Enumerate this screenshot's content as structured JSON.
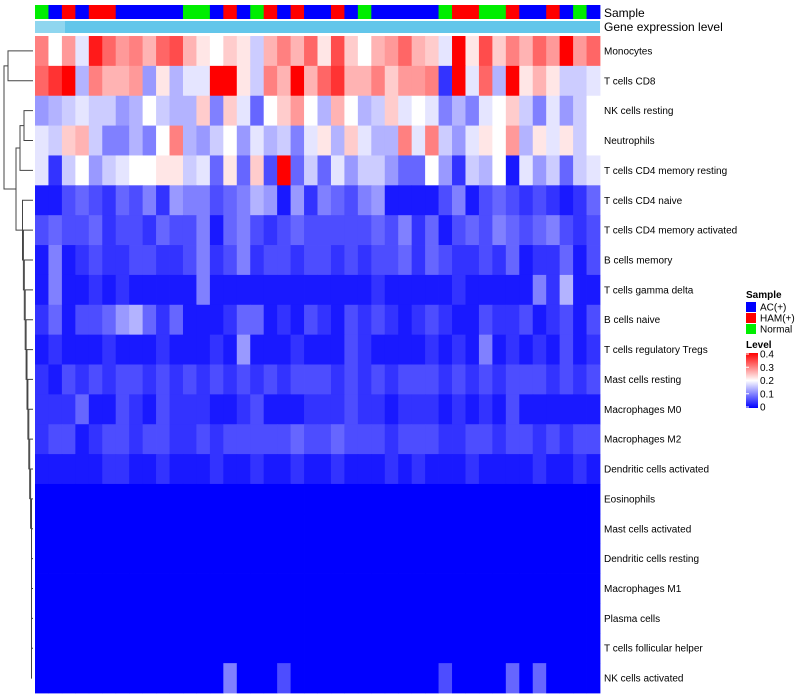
{
  "chart_data": {
    "type": "heatmap",
    "annotation_labels": {
      "sample": "Sample",
      "gene": "Gene expression level"
    },
    "legend": {
      "sample_title": "Sample",
      "sample_entries": [
        {
          "name": "AC(+)",
          "color": "#0000ff"
        },
        {
          "name": "HAM(+)",
          "color": "#ff0000"
        },
        {
          "name": "Normal",
          "color": "#00ee00"
        }
      ],
      "level_title": "Level",
      "level_ticks": [
        "0.4",
        "0.3",
        "0.2",
        "0.1",
        "0"
      ],
      "level_range": [
        0,
        0.4
      ]
    },
    "sample_groups": [
      "N",
      "A",
      "H",
      "A",
      "H",
      "H",
      "A",
      "A",
      "A",
      "A",
      "A",
      "N",
      "N",
      "A",
      "H",
      "A",
      "N",
      "H",
      "A",
      "H",
      "A",
      "A",
      "H",
      "A",
      "N",
      "A",
      "A",
      "A",
      "A",
      "A",
      "N",
      "H",
      "H",
      "N",
      "N",
      "H",
      "A",
      "A",
      "H",
      "A",
      "N",
      "A"
    ],
    "gene_expression_color": "#63c6ea",
    "rows": [
      "Monocytes",
      "T cells CD8",
      "NK cells resting",
      "Neutrophils",
      "T cells CD4 memory resting",
      "T cells CD4 naive",
      "T cells CD4 memory activated",
      "B cells memory",
      "T cells gamma delta",
      "B cells naive",
      "T cells regulatory  Tregs",
      "Mast cells resting",
      "Macrophages M0",
      "Macrophages M2",
      "Dendritic cells activated",
      "Eosinophils",
      "Mast cells activated",
      "Dendritic cells resting",
      "Macrophages M1",
      "Plasma cells",
      "T cells follicular helper",
      "NK cells activated"
    ],
    "values": [
      [
        0.3,
        0.2,
        0.28,
        0.18,
        0.38,
        0.32,
        0.28,
        0.3,
        0.26,
        0.32,
        0.34,
        0.26,
        0.22,
        0.2,
        0.24,
        0.22,
        0.16,
        0.26,
        0.3,
        0.26,
        0.32,
        0.22,
        0.34,
        0.24,
        0.2,
        0.26,
        0.28,
        0.32,
        0.26,
        0.24,
        0.18,
        0.4,
        0.22,
        0.34,
        0.24,
        0.3,
        0.26,
        0.32,
        0.28,
        0.4,
        0.28,
        0.32
      ],
      [
        0.32,
        0.36,
        0.4,
        0.14,
        0.3,
        0.26,
        0.26,
        0.28,
        0.12,
        0.22,
        0.14,
        0.18,
        0.18,
        0.4,
        0.4,
        0.22,
        0.16,
        0.3,
        0.26,
        0.4,
        0.26,
        0.32,
        0.36,
        0.26,
        0.26,
        0.3,
        0.24,
        0.28,
        0.28,
        0.3,
        0.04,
        0.4,
        0.18,
        0.32,
        0.14,
        0.4,
        0.22,
        0.26,
        0.22,
        0.16,
        0.16,
        0.18
      ],
      [
        0.12,
        0.14,
        0.16,
        0.18,
        0.16,
        0.16,
        0.12,
        0.14,
        0.2,
        0.16,
        0.14,
        0.14,
        0.24,
        0.1,
        0.24,
        0.18,
        0.08,
        0.2,
        0.24,
        0.28,
        0.2,
        0.14,
        0.26,
        0.2,
        0.14,
        0.16,
        0.24,
        0.18,
        0.2,
        0.18,
        0.1,
        0.14,
        0.1,
        0.18,
        0.2,
        0.24,
        0.16,
        0.1,
        0.18,
        0.12,
        0.16,
        0.2
      ],
      [
        0.18,
        0.16,
        0.24,
        0.26,
        0.16,
        0.1,
        0.1,
        0.14,
        0.1,
        0.2,
        0.3,
        0.14,
        0.12,
        0.16,
        0.2,
        0.12,
        0.18,
        0.14,
        0.16,
        0.1,
        0.18,
        0.22,
        0.14,
        0.24,
        0.18,
        0.14,
        0.14,
        0.3,
        0.18,
        0.3,
        0.16,
        0.12,
        0.18,
        0.22,
        0.2,
        0.28,
        0.14,
        0.22,
        0.18,
        0.22,
        0.16,
        0.2
      ],
      [
        0.18,
        0.04,
        0.16,
        0.2,
        0.12,
        0.16,
        0.18,
        0.2,
        0.2,
        0.22,
        0.22,
        0.16,
        0.18,
        0.08,
        0.22,
        0.08,
        0.24,
        0.06,
        0.4,
        0.08,
        0.16,
        0.08,
        0.18,
        0.12,
        0.16,
        0.16,
        0.12,
        0.08,
        0.08,
        0.2,
        0.12,
        0.04,
        0.16,
        0.14,
        0.2,
        0.02,
        0.18,
        0.12,
        0.16,
        0.08,
        0.16,
        0.18
      ],
      [
        0.02,
        0.02,
        0.06,
        0.08,
        0.06,
        0.04,
        0.08,
        0.06,
        0.1,
        0.04,
        0.12,
        0.1,
        0.1,
        0.06,
        0.08,
        0.1,
        0.14,
        0.12,
        0.02,
        0.12,
        0.04,
        0.1,
        0.08,
        0.06,
        0.1,
        0.12,
        0.02,
        0.02,
        0.02,
        0.02,
        0.06,
        0.1,
        0.02,
        0.06,
        0.08,
        0.06,
        0.04,
        0.06,
        0.04,
        0.02,
        0.04,
        0.08
      ],
      [
        0.06,
        0.08,
        0.06,
        0.06,
        0.08,
        0.04,
        0.06,
        0.06,
        0.04,
        0.08,
        0.06,
        0.06,
        0.1,
        0.02,
        0.08,
        0.1,
        0.06,
        0.04,
        0.06,
        0.08,
        0.06,
        0.06,
        0.06,
        0.06,
        0.06,
        0.08,
        0.06,
        0.1,
        0.04,
        0.08,
        0.02,
        0.06,
        0.08,
        0.06,
        0.1,
        0.08,
        0.06,
        0.08,
        0.1,
        0.06,
        0.04,
        0.06
      ],
      [
        0.02,
        0.1,
        0.02,
        0.04,
        0.06,
        0.04,
        0.04,
        0.06,
        0.06,
        0.04,
        0.04,
        0.06,
        0.1,
        0.04,
        0.06,
        0.1,
        0.04,
        0.06,
        0.06,
        0.04,
        0.06,
        0.06,
        0.04,
        0.06,
        0.04,
        0.06,
        0.06,
        0.08,
        0.04,
        0.08,
        0.06,
        0.04,
        0.04,
        0.06,
        0.04,
        0.08,
        0.02,
        0.04,
        0.04,
        0.08,
        0.02,
        0.06
      ],
      [
        0.02,
        0.1,
        0.02,
        0.02,
        0.04,
        0.02,
        0.04,
        0.02,
        0.02,
        0.02,
        0.02,
        0.02,
        0.1,
        0.02,
        0.02,
        0.02,
        0.02,
        0.02,
        0.02,
        0.02,
        0.02,
        0.02,
        0.02,
        0.02,
        0.02,
        0.04,
        0.02,
        0.02,
        0.02,
        0.02,
        0.02,
        0.04,
        0.02,
        0.02,
        0.02,
        0.02,
        0.02,
        0.1,
        0.04,
        0.14,
        0.02,
        0.02
      ],
      [
        0.04,
        0.08,
        0.02,
        0.06,
        0.06,
        0.08,
        0.12,
        0.14,
        0.08,
        0.04,
        0.08,
        0.02,
        0.02,
        0.02,
        0.04,
        0.08,
        0.08,
        0.02,
        0.04,
        0.02,
        0.06,
        0.04,
        0.02,
        0.06,
        0.04,
        0.06,
        0.04,
        0.02,
        0.04,
        0.06,
        0.04,
        0.02,
        0.02,
        0.06,
        0.04,
        0.04,
        0.06,
        0.02,
        0.04,
        0.06,
        0.02,
        0.06
      ],
      [
        0.02,
        0.04,
        0.02,
        0.02,
        0.02,
        0.04,
        0.02,
        0.02,
        0.02,
        0.04,
        0.02,
        0.02,
        0.02,
        0.04,
        0.02,
        0.12,
        0.02,
        0.02,
        0.02,
        0.04,
        0.02,
        0.02,
        0.02,
        0.06,
        0.04,
        0.02,
        0.02,
        0.02,
        0.02,
        0.04,
        0.02,
        0.04,
        0.02,
        0.1,
        0.02,
        0.04,
        0.02,
        0.04,
        0.02,
        0.06,
        0.02,
        0.04
      ],
      [
        0.04,
        0.02,
        0.06,
        0.04,
        0.06,
        0.04,
        0.06,
        0.06,
        0.04,
        0.06,
        0.04,
        0.06,
        0.04,
        0.06,
        0.04,
        0.06,
        0.04,
        0.06,
        0.04,
        0.06,
        0.06,
        0.06,
        0.04,
        0.06,
        0.04,
        0.06,
        0.04,
        0.06,
        0.06,
        0.06,
        0.04,
        0.06,
        0.04,
        0.06,
        0.04,
        0.06,
        0.06,
        0.06,
        0.04,
        0.06,
        0.04,
        0.06
      ],
      [
        0.04,
        0.04,
        0.04,
        0.08,
        0.02,
        0.02,
        0.06,
        0.04,
        0.02,
        0.06,
        0.04,
        0.04,
        0.04,
        0.02,
        0.02,
        0.04,
        0.06,
        0.02,
        0.02,
        0.02,
        0.04,
        0.04,
        0.04,
        0.06,
        0.04,
        0.04,
        0.02,
        0.04,
        0.04,
        0.04,
        0.02,
        0.04,
        0.02,
        0.04,
        0.02,
        0.06,
        0.02,
        0.02,
        0.02,
        0.02,
        0.02,
        0.02
      ],
      [
        0.04,
        0.06,
        0.06,
        0.02,
        0.04,
        0.06,
        0.06,
        0.04,
        0.06,
        0.06,
        0.04,
        0.04,
        0.06,
        0.04,
        0.06,
        0.06,
        0.06,
        0.06,
        0.06,
        0.08,
        0.06,
        0.06,
        0.08,
        0.06,
        0.06,
        0.06,
        0.04,
        0.06,
        0.06,
        0.06,
        0.04,
        0.04,
        0.06,
        0.06,
        0.04,
        0.06,
        0.06,
        0.04,
        0.06,
        0.04,
        0.06,
        0.06
      ],
      [
        0.02,
        0.02,
        0.02,
        0.02,
        0.02,
        0.04,
        0.04,
        0.02,
        0.02,
        0.04,
        0.02,
        0.02,
        0.02,
        0.04,
        0.02,
        0.02,
        0.04,
        0.02,
        0.02,
        0.04,
        0.02,
        0.02,
        0.04,
        0.02,
        0.02,
        0.02,
        0.04,
        0.02,
        0.04,
        0.02,
        0.02,
        0.02,
        0.04,
        0.02,
        0.02,
        0.02,
        0.02,
        0.04,
        0.02,
        0.02,
        0.04,
        0.02
      ],
      [
        0,
        0,
        0,
        0,
        0,
        0,
        0,
        0,
        0,
        0,
        0,
        0,
        0,
        0,
        0,
        0,
        0,
        0,
        0,
        0,
        0,
        0,
        0,
        0,
        0,
        0,
        0,
        0,
        0,
        0,
        0,
        0,
        0,
        0,
        0,
        0,
        0,
        0,
        0,
        0,
        0,
        0
      ],
      [
        0,
        0,
        0,
        0,
        0,
        0,
        0,
        0,
        0,
        0,
        0,
        0,
        0,
        0,
        0,
        0,
        0,
        0,
        0,
        0,
        0,
        0,
        0,
        0,
        0,
        0,
        0,
        0,
        0,
        0,
        0,
        0,
        0,
        0,
        0,
        0,
        0,
        0,
        0,
        0,
        0,
        0
      ],
      [
        0,
        0,
        0,
        0,
        0,
        0,
        0,
        0,
        0,
        0,
        0,
        0,
        0,
        0,
        0,
        0,
        0,
        0,
        0,
        0,
        0,
        0,
        0,
        0,
        0,
        0,
        0,
        0,
        0,
        0,
        0,
        0,
        0,
        0,
        0,
        0,
        0,
        0,
        0,
        0,
        0,
        0
      ],
      [
        0,
        0,
        0,
        0,
        0,
        0,
        0,
        0,
        0,
        0,
        0,
        0,
        0,
        0,
        0,
        0,
        0,
        0,
        0,
        0,
        0,
        0,
        0,
        0,
        0,
        0,
        0,
        0,
        0,
        0,
        0,
        0,
        0,
        0,
        0,
        0,
        0,
        0,
        0,
        0,
        0,
        0
      ],
      [
        0,
        0,
        0,
        0,
        0,
        0,
        0,
        0,
        0,
        0,
        0,
        0,
        0,
        0,
        0,
        0,
        0,
        0,
        0,
        0,
        0,
        0,
        0,
        0,
        0,
        0,
        0,
        0,
        0,
        0,
        0,
        0,
        0,
        0,
        0,
        0,
        0,
        0,
        0,
        0,
        0,
        0
      ],
      [
        0,
        0,
        0,
        0,
        0,
        0,
        0,
        0,
        0,
        0,
        0,
        0,
        0,
        0,
        0,
        0,
        0,
        0,
        0,
        0,
        0,
        0,
        0,
        0,
        0,
        0,
        0,
        0,
        0,
        0,
        0,
        0,
        0,
        0,
        0,
        0,
        0,
        0,
        0,
        0,
        0,
        0
      ],
      [
        0,
        0,
        0,
        0,
        0,
        0,
        0,
        0,
        0,
        0,
        0,
        0,
        0,
        0,
        0.1,
        0,
        0,
        0,
        0.06,
        0,
        0,
        0,
        0,
        0,
        0,
        0,
        0,
        0,
        0,
        0,
        0.06,
        0,
        0,
        0,
        0,
        0.08,
        0,
        0.08,
        0,
        0,
        0,
        0
      ]
    ]
  }
}
